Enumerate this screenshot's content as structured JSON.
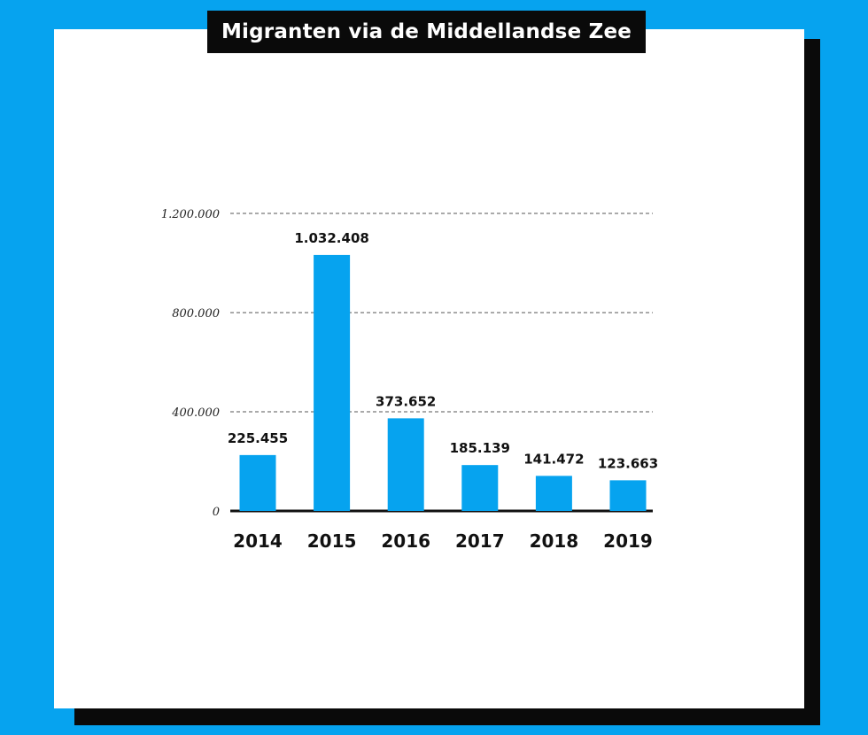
{
  "chart_data": {
    "type": "bar",
    "title": "Migranten via de Middellandse Zee",
    "categories": [
      "2014",
      "2015",
      "2016",
      "2017",
      "2018",
      "2019"
    ],
    "values": [
      225455,
      1032408,
      373652,
      185139,
      141472,
      123663
    ],
    "data_labels": [
      "225.455",
      "1.032.408",
      "373.652",
      "185.139",
      "141.472",
      "123.663"
    ],
    "yticks": [
      0,
      400000,
      800000,
      1200000
    ],
    "ytick_labels": [
      "0",
      "400.000",
      "800.000",
      "1.200.000"
    ],
    "ylim": [
      0,
      1200000
    ],
    "grid": "dashed-horizontal",
    "bar_color": "#06a3ef"
  },
  "colors": {
    "background": "#06a3ef",
    "card": "#ffffff",
    "title_box": "#0a0a0a",
    "bar": "#06a3ef"
  }
}
